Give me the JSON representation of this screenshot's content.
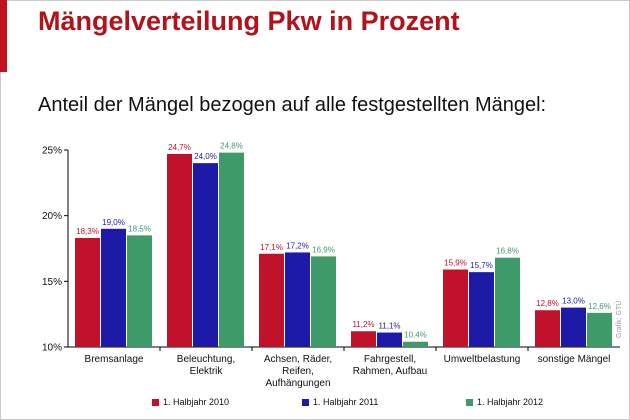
{
  "header": {
    "title": "Mängelverteilung Pkw in Prozent"
  },
  "subtitle": "Anteil der Mängel bezogen auf alle festgestellten Mängel:",
  "credit": "Grafik: GTÜ",
  "colors": {
    "accent": "#c1121f",
    "title": "#b3121b"
  },
  "chart_data": {
    "type": "bar",
    "title": "Mängelverteilung Pkw in Prozent",
    "subtitle": "Anteil der Mängel bezogen auf alle festgestellten Mängel:",
    "categories": [
      "Bremsanlage",
      "Beleuchtung, Elektrik",
      "Achsen, Räder, Reifen, Aufhängungen",
      "Fahrgestell, Rahmen, Aufbau",
      "Umweltbelastung",
      "sonstige Mängel"
    ],
    "series": [
      {
        "name": "1. Halbjahr 2010",
        "color": "#c0122a",
        "values": [
          18.3,
          24.7,
          17.1,
          11.2,
          15.9,
          12.8
        ],
        "labels": [
          "18,3%",
          "24,7%",
          "17,1%",
          "11,2%",
          "15,9%",
          "12,8%"
        ]
      },
      {
        "name": "1. Halbjahr 2011",
        "color": "#1d1aa8",
        "values": [
          19.0,
          24.0,
          17.2,
          11.1,
          15.7,
          13.0
        ],
        "labels": [
          "19,0%",
          "24,0%",
          "17,2%",
          "11,1%",
          "15,7%",
          "13,0%"
        ]
      },
      {
        "name": "1. Halbjahr 2012",
        "color": "#3f9a6a",
        "values": [
          18.5,
          24.8,
          16.9,
          10.4,
          16.8,
          12.6
        ],
        "labels": [
          "18,5%",
          "24,8%",
          "16,9%",
          "10,4%",
          "16,8%",
          "12,6%"
        ]
      }
    ],
    "ylim": [
      10,
      25
    ],
    "yticks": [
      10,
      15,
      20,
      25
    ],
    "ytick_labels": [
      "10%",
      "15%",
      "20%",
      "25%"
    ],
    "xlabel": "",
    "ylabel": "",
    "grid": false,
    "legend": "bottom"
  }
}
